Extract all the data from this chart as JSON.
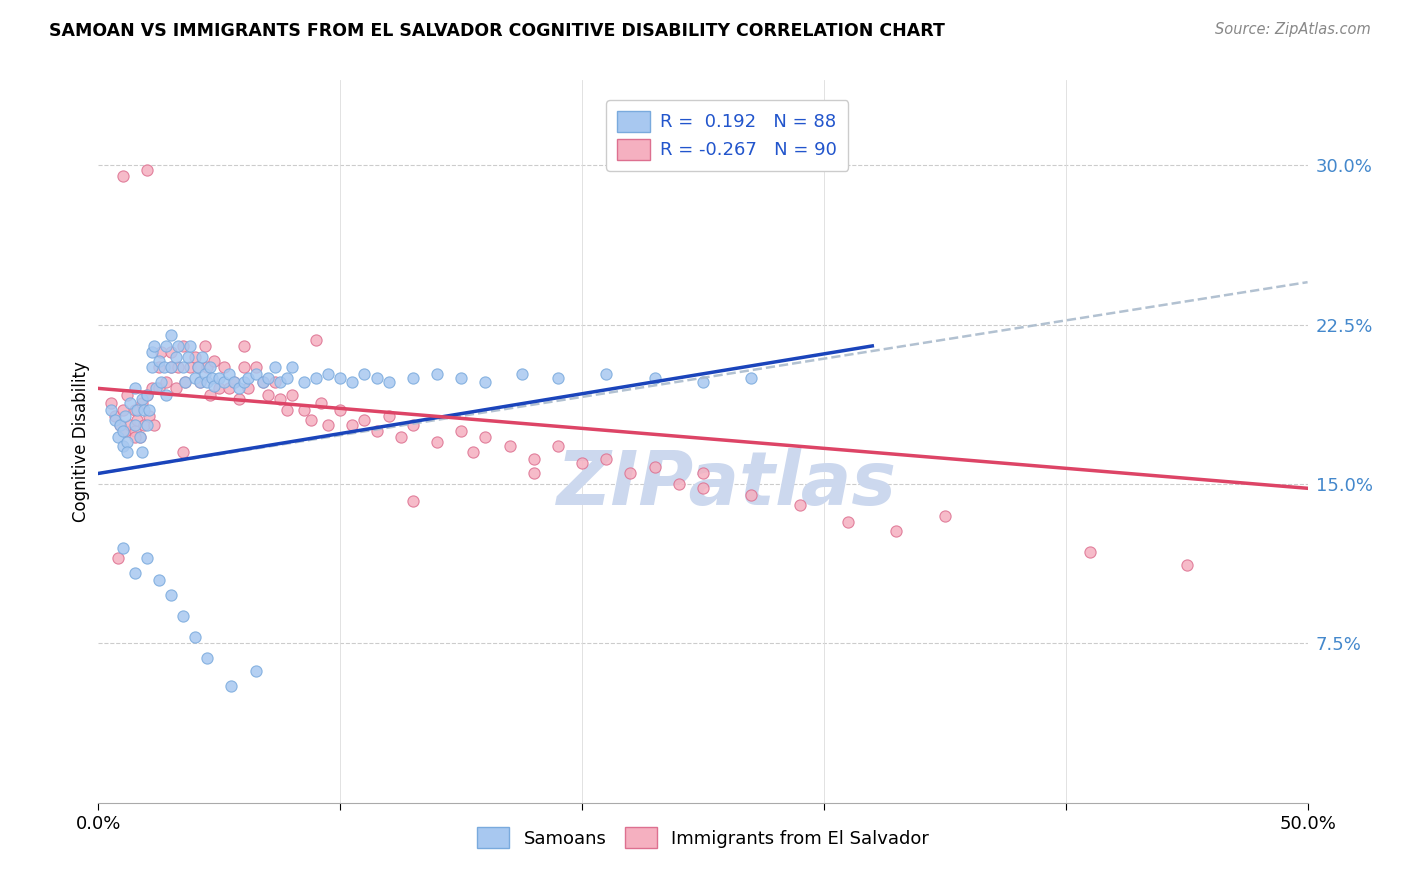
{
  "title": "SAMOAN VS IMMIGRANTS FROM EL SALVADOR COGNITIVE DISABILITY CORRELATION CHART",
  "source": "Source: ZipAtlas.com",
  "ylabel": "Cognitive Disability",
  "ytick_labels": [
    "7.5%",
    "15.0%",
    "22.5%",
    "30.0%"
  ],
  "ytick_values": [
    0.075,
    0.15,
    0.225,
    0.3
  ],
  "xlim": [
    0.0,
    0.5
  ],
  "ylim": [
    0.0,
    0.34
  ],
  "samoans_color": "#a8c8f0",
  "samoans_edge": "#7aaadd",
  "salvador_color": "#f5b0c0",
  "salvador_edge": "#dd7090",
  "blue_line_color": "#1a44bb",
  "pink_line_color": "#dd4466",
  "dashed_line_color": "#aabbcc",
  "watermark_color": "#ccd8ee",
  "samoans_label": "Samoans",
  "salvador_label": "Immigrants from El Salvador",
  "R_samoan": 0.192,
  "N_samoan": 88,
  "R_salvador": -0.267,
  "N_salvador": 90,
  "samoan_line_x_start": 0.0,
  "samoan_line_x_solid_end": 0.32,
  "samoan_line_x_dash_end": 0.5,
  "samoan_line_y_start": 0.155,
  "samoan_line_y_solid_end": 0.215,
  "samoan_line_y_dash_end": 0.245,
  "salvador_line_x_start": 0.0,
  "salvador_line_x_end": 0.5,
  "salvador_line_y_start": 0.195,
  "salvador_line_y_end": 0.148,
  "samoans_x": [
    0.005,
    0.007,
    0.008,
    0.009,
    0.01,
    0.01,
    0.011,
    0.012,
    0.012,
    0.013,
    0.015,
    0.015,
    0.016,
    0.017,
    0.018,
    0.018,
    0.019,
    0.02,
    0.02,
    0.021,
    0.022,
    0.022,
    0.023,
    0.024,
    0.025,
    0.026,
    0.027,
    0.028,
    0.028,
    0.03,
    0.03,
    0.032,
    0.033,
    0.035,
    0.036,
    0.037,
    0.038,
    0.04,
    0.041,
    0.042,
    0.043,
    0.044,
    0.045,
    0.046,
    0.047,
    0.048,
    0.05,
    0.052,
    0.054,
    0.056,
    0.058,
    0.06,
    0.062,
    0.065,
    0.068,
    0.07,
    0.073,
    0.075,
    0.078,
    0.08,
    0.085,
    0.09,
    0.095,
    0.1,
    0.105,
    0.11,
    0.115,
    0.12,
    0.13,
    0.14,
    0.15,
    0.16,
    0.175,
    0.19,
    0.21,
    0.23,
    0.25,
    0.27,
    0.01,
    0.015,
    0.02,
    0.025,
    0.03,
    0.035,
    0.04,
    0.045,
    0.055,
    0.065
  ],
  "samoans_y": [
    0.185,
    0.18,
    0.172,
    0.178,
    0.175,
    0.168,
    0.182,
    0.17,
    0.165,
    0.188,
    0.195,
    0.178,
    0.185,
    0.172,
    0.19,
    0.165,
    0.185,
    0.178,
    0.192,
    0.185,
    0.212,
    0.205,
    0.215,
    0.195,
    0.208,
    0.198,
    0.205,
    0.192,
    0.215,
    0.205,
    0.22,
    0.21,
    0.215,
    0.205,
    0.198,
    0.21,
    0.215,
    0.2,
    0.205,
    0.198,
    0.21,
    0.202,
    0.198,
    0.205,
    0.2,
    0.196,
    0.2,
    0.198,
    0.202,
    0.198,
    0.195,
    0.198,
    0.2,
    0.202,
    0.198,
    0.2,
    0.205,
    0.198,
    0.2,
    0.205,
    0.198,
    0.2,
    0.202,
    0.2,
    0.198,
    0.202,
    0.2,
    0.198,
    0.2,
    0.202,
    0.2,
    0.198,
    0.202,
    0.2,
    0.202,
    0.2,
    0.198,
    0.2,
    0.12,
    0.108,
    0.115,
    0.105,
    0.098,
    0.088,
    0.078,
    0.068,
    0.055,
    0.062
  ],
  "salvador_x": [
    0.005,
    0.007,
    0.009,
    0.01,
    0.011,
    0.012,
    0.013,
    0.015,
    0.015,
    0.016,
    0.017,
    0.018,
    0.019,
    0.02,
    0.021,
    0.022,
    0.023,
    0.025,
    0.025,
    0.026,
    0.028,
    0.03,
    0.03,
    0.032,
    0.033,
    0.035,
    0.036,
    0.038,
    0.04,
    0.041,
    0.042,
    0.044,
    0.045,
    0.046,
    0.048,
    0.05,
    0.052,
    0.054,
    0.056,
    0.058,
    0.06,
    0.062,
    0.065,
    0.068,
    0.07,
    0.073,
    0.075,
    0.078,
    0.08,
    0.085,
    0.088,
    0.092,
    0.095,
    0.1,
    0.105,
    0.11,
    0.115,
    0.12,
    0.125,
    0.13,
    0.14,
    0.15,
    0.155,
    0.16,
    0.17,
    0.18,
    0.19,
    0.2,
    0.21,
    0.22,
    0.23,
    0.24,
    0.25,
    0.27,
    0.29,
    0.31,
    0.33,
    0.01,
    0.02,
    0.035,
    0.06,
    0.09,
    0.13,
    0.18,
    0.25,
    0.35,
    0.41,
    0.45,
    0.008,
    0.015
  ],
  "salvador_y": [
    0.188,
    0.182,
    0.178,
    0.185,
    0.175,
    0.192,
    0.178,
    0.185,
    0.175,
    0.18,
    0.172,
    0.188,
    0.178,
    0.192,
    0.182,
    0.195,
    0.178,
    0.205,
    0.195,
    0.212,
    0.198,
    0.205,
    0.212,
    0.195,
    0.205,
    0.215,
    0.198,
    0.205,
    0.21,
    0.205,
    0.198,
    0.215,
    0.205,
    0.192,
    0.208,
    0.195,
    0.205,
    0.195,
    0.198,
    0.19,
    0.205,
    0.195,
    0.205,
    0.198,
    0.192,
    0.198,
    0.19,
    0.185,
    0.192,
    0.185,
    0.18,
    0.188,
    0.178,
    0.185,
    0.178,
    0.18,
    0.175,
    0.182,
    0.172,
    0.178,
    0.17,
    0.175,
    0.165,
    0.172,
    0.168,
    0.162,
    0.168,
    0.16,
    0.162,
    0.155,
    0.158,
    0.15,
    0.155,
    0.145,
    0.14,
    0.132,
    0.128,
    0.295,
    0.298,
    0.165,
    0.215,
    0.218,
    0.142,
    0.155,
    0.148,
    0.135,
    0.118,
    0.112,
    0.115,
    0.172
  ]
}
